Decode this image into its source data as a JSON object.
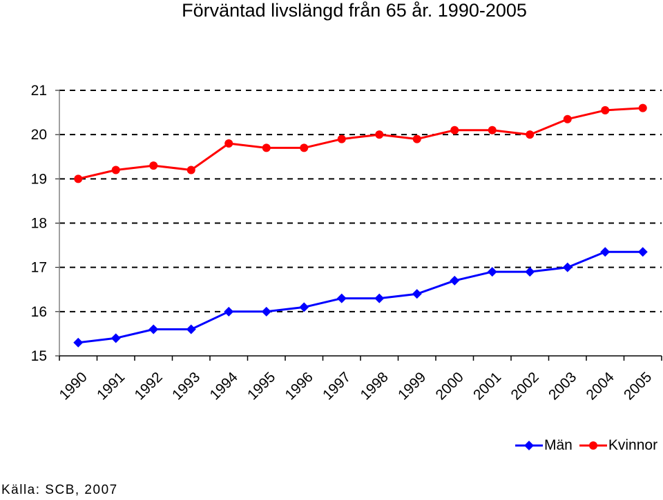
{
  "chart_data": {
    "type": "line",
    "title": "Förväntad livslängd från 65 år. 1990-2005",
    "categories": [
      "1990",
      "1991",
      "1992",
      "1993",
      "1994",
      "1995",
      "1996",
      "1997",
      "1998",
      "1999",
      "2000",
      "2001",
      "2002",
      "2003",
      "2004",
      "2005"
    ],
    "ylim": [
      15,
      21
    ],
    "yticks": [
      "15",
      "16",
      "17",
      "18",
      "19",
      "20",
      "21"
    ],
    "grid": true,
    "legend_position": "bottom-right",
    "series": [
      {
        "name": "Män",
        "color": "#0000ff",
        "marker": "diamond",
        "values": [
          15.3,
          15.4,
          15.6,
          15.6,
          16.0,
          16.0,
          16.1,
          16.3,
          16.3,
          16.4,
          16.7,
          16.9,
          16.9,
          17.0,
          17.35,
          17.35
        ]
      },
      {
        "name": "Kvinnor",
        "color": "#ff0000",
        "marker": "circle",
        "values": [
          19.0,
          19.2,
          19.3,
          19.2,
          19.8,
          19.7,
          19.7,
          19.9,
          20.0,
          19.9,
          20.1,
          20.1,
          20.0,
          20.35,
          20.55,
          20.6
        ]
      }
    ]
  },
  "source": "Källa: SCB, 2007"
}
